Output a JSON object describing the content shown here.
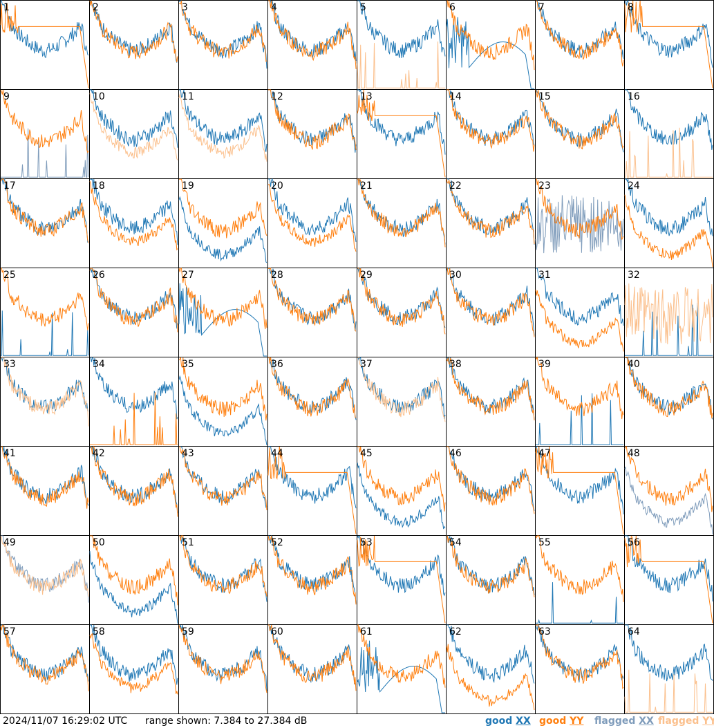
{
  "chart_data": {
    "type": "line",
    "grid_rows": 8,
    "grid_cols": 8,
    "y_range_db": [
      7.384,
      27.384
    ],
    "panels": [
      {
        "label": "1",
        "xx": "normal",
        "yy": "dead",
        "flag": null
      },
      {
        "label": "2",
        "xx": "normal",
        "yy": "normal",
        "flag": null
      },
      {
        "label": "3",
        "xx": "normal",
        "yy": "normal",
        "flag": null
      },
      {
        "label": "4",
        "xx": "normal",
        "yy": "normal",
        "flag": null
      },
      {
        "label": "5",
        "xx": "normal",
        "yy": "spikes_low",
        "flag": "yy"
      },
      {
        "label": "6",
        "xx": "dead_low",
        "yy": "normal",
        "flag": null
      },
      {
        "label": "7",
        "xx": "normal",
        "yy": "normal",
        "flag": null
      },
      {
        "label": "8",
        "xx": "normal",
        "yy": "dead",
        "flag": null
      },
      {
        "label": "9",
        "xx": "spikes_low",
        "yy": "normal",
        "flag": "xx"
      },
      {
        "label": "10",
        "xx": "normal",
        "yy": "low",
        "flag": "yy"
      },
      {
        "label": "11",
        "xx": "normal",
        "yy": "low",
        "flag": "yy"
      },
      {
        "label": "12",
        "xx": "normal",
        "yy": "normal",
        "flag": null
      },
      {
        "label": "13",
        "xx": "normal",
        "yy": "dead",
        "flag": null
      },
      {
        "label": "14",
        "xx": "normal",
        "yy": "normal",
        "flag": null
      },
      {
        "label": "15",
        "xx": "normal",
        "yy": "normal",
        "flag": null
      },
      {
        "label": "16",
        "xx": "normal",
        "yy": "spikes_low",
        "flag": "yy"
      },
      {
        "label": "17",
        "xx": "normal",
        "yy": "normal",
        "flag": null
      },
      {
        "label": "18",
        "xx": "normal",
        "yy": "low",
        "flag": null
      },
      {
        "label": "19",
        "xx": "deep",
        "yy": "normal",
        "flag": null
      },
      {
        "label": "20",
        "xx": "normal",
        "yy": "low",
        "flag": null
      },
      {
        "label": "21",
        "xx": "normal",
        "yy": "normal",
        "flag": null
      },
      {
        "label": "22",
        "xx": "normal",
        "yy": "normal",
        "flag": null
      },
      {
        "label": "23",
        "xx": "noisy",
        "yy": "normal",
        "flag": "xx"
      },
      {
        "label": "24",
        "xx": "normal",
        "yy": "deep",
        "flag": null
      },
      {
        "label": "25",
        "xx": "spikes_low",
        "yy": "normal",
        "flag": null
      },
      {
        "label": "26",
        "xx": "normal",
        "yy": "normal",
        "flag": null
      },
      {
        "label": "27",
        "xx": "dead_low",
        "yy": "normal",
        "flag": null
      },
      {
        "label": "28",
        "xx": "normal",
        "yy": "normal",
        "flag": null
      },
      {
        "label": "29",
        "xx": "normal",
        "yy": "normal",
        "flag": null
      },
      {
        "label": "30",
        "xx": "normal",
        "yy": "normal",
        "flag": null
      },
      {
        "label": "31",
        "xx": "normal",
        "yy": "deep",
        "flag": null
      },
      {
        "label": "32",
        "xx": "spikes_low",
        "yy": "noisy",
        "flag": "yy"
      },
      {
        "label": "33",
        "xx": "normal",
        "yy": "normal",
        "flag": "yy"
      },
      {
        "label": "34",
        "xx": "normal",
        "yy": "spikes_low",
        "flag": null
      },
      {
        "label": "35",
        "xx": "deep",
        "yy": "normal",
        "flag": null
      },
      {
        "label": "36",
        "xx": "normal",
        "yy": "normal",
        "flag": null
      },
      {
        "label": "37",
        "xx": "normal",
        "yy": "normal",
        "flag": "yy"
      },
      {
        "label": "38",
        "xx": "normal",
        "yy": "normal",
        "flag": null
      },
      {
        "label": "39",
        "xx": "spikes_low",
        "yy": "normal",
        "flag": null
      },
      {
        "label": "40",
        "xx": "normal",
        "yy": "normal",
        "flag": null
      },
      {
        "label": "41",
        "xx": "normal",
        "yy": "normal",
        "flag": null
      },
      {
        "label": "42",
        "xx": "normal",
        "yy": "normal",
        "flag": null
      },
      {
        "label": "43",
        "xx": "normal",
        "yy": "normal",
        "flag": null
      },
      {
        "label": "44",
        "xx": "normal",
        "yy": "dead",
        "flag": null
      },
      {
        "label": "45",
        "xx": "deep",
        "yy": "normal",
        "flag": null
      },
      {
        "label": "46",
        "xx": "normal",
        "yy": "normal",
        "flag": null
      },
      {
        "label": "47",
        "xx": "normal",
        "yy": "dead",
        "flag": null
      },
      {
        "label": "48",
        "xx": "deep",
        "yy": "normal",
        "flag": "xx"
      },
      {
        "label": "49",
        "xx": "normal",
        "yy": "normal",
        "flag": "both"
      },
      {
        "label": "50",
        "xx": "deep",
        "yy": "normal",
        "flag": null
      },
      {
        "label": "51",
        "xx": "normal",
        "yy": "normal",
        "flag": null
      },
      {
        "label": "52",
        "xx": "normal",
        "yy": "normal",
        "flag": null
      },
      {
        "label": "53",
        "xx": "normal",
        "yy": "dead",
        "flag": null
      },
      {
        "label": "54",
        "xx": "normal",
        "yy": "normal",
        "flag": null
      },
      {
        "label": "55",
        "xx": "spikes_low",
        "yy": "normal",
        "flag": null
      },
      {
        "label": "56",
        "xx": "normal",
        "yy": "dead",
        "flag": null
      },
      {
        "label": "57",
        "xx": "normal",
        "yy": "normal",
        "flag": null
      },
      {
        "label": "58",
        "xx": "normal",
        "yy": "low",
        "flag": null
      },
      {
        "label": "59",
        "xx": "normal",
        "yy": "normal",
        "flag": null
      },
      {
        "label": "60",
        "xx": "normal",
        "yy": "normal",
        "flag": null
      },
      {
        "label": "61",
        "xx": "dead_low",
        "yy": "normal",
        "flag": null
      },
      {
        "label": "62",
        "xx": "normal",
        "yy": "deep",
        "flag": null
      },
      {
        "label": "63",
        "xx": "normal",
        "yy": "normal",
        "flag": null
      },
      {
        "label": "64",
        "xx": "normal",
        "yy": "spikes_low",
        "flag": "yy"
      }
    ]
  },
  "colors": {
    "good_xx": "#1f77b4",
    "good_yy": "#ff7f0e",
    "flagged_xx": "#7f9cbb",
    "flagged_yy": "#fbc08d",
    "border": "#000000"
  },
  "footer": {
    "timestamp": "2024/11/07 16:29:02 UTC",
    "range": "range shown: 7.384 to 27.384 dB"
  },
  "legend": {
    "good_prefix": "good ",
    "flagged_prefix": "flagged ",
    "xx": "XX",
    "yy": "YY"
  }
}
